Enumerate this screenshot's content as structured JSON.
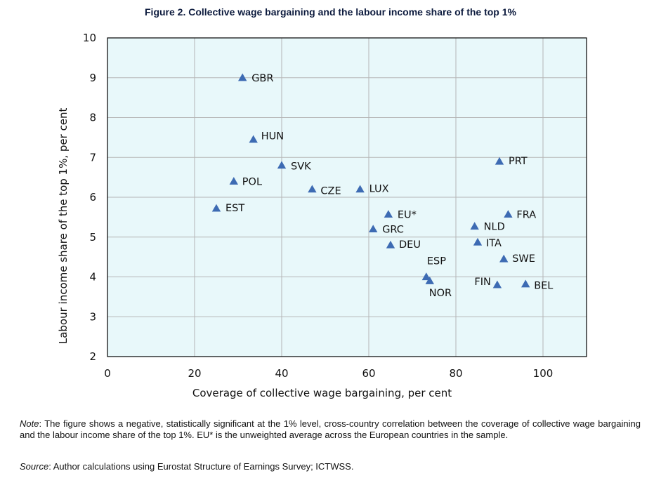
{
  "figure": {
    "title": "Figure 2. Collective wage bargaining and the labour income share of the top 1%",
    "note_label": "Note",
    "note_text": ": The figure shows a negative, statistically significant at the 1% level, cross-country correlation between the coverage of collective wage bargaining and the labour income share of the top 1%. EU* is the unweighted average across the European countries in the sample.",
    "source_label": "Source",
    "source_text": ": Author calculations using Eurostat Structure of Earnings Survey; ICTWSS."
  },
  "chart_data": {
    "type": "scatter",
    "title": "Figure 2. Collective wage bargaining and the labour income share of the top 1%",
    "xlabel": "Coverage of collective wage bargaining, per cent",
    "ylabel": "Labour income share of the top 1%, per cent",
    "xlim": [
      0,
      110
    ],
    "ylim": [
      2,
      10
    ],
    "xticks": [
      0,
      20,
      40,
      60,
      80,
      100
    ],
    "yticks": [
      2,
      3,
      4,
      5,
      6,
      7,
      8,
      9,
      10
    ],
    "grid": true,
    "marker": "triangle",
    "colors": {
      "marker": "#3d6bb3",
      "plot_bg": "#e8f8fa",
      "grid": "#b5b5b5",
      "frame": "#000000"
    },
    "points": [
      {
        "label": "GBR",
        "x": 31,
        "y": 9.0
      },
      {
        "label": "HUN",
        "x": 33.5,
        "y": 7.45
      },
      {
        "label": "SVK",
        "x": 40,
        "y": 6.8
      },
      {
        "label": "POL",
        "x": 29,
        "y": 6.4
      },
      {
        "label": "CZE",
        "x": 47,
        "y": 6.2
      },
      {
        "label": "LUX",
        "x": 58,
        "y": 6.2
      },
      {
        "label": "EST",
        "x": 25,
        "y": 5.72
      },
      {
        "label": "EU*",
        "x": 64.5,
        "y": 5.57
      },
      {
        "label": "GRC",
        "x": 61,
        "y": 5.2
      },
      {
        "label": "DEU",
        "x": 65,
        "y": 4.8
      },
      {
        "label": "ESP",
        "x": 73.2,
        "y": 4.0
      },
      {
        "label": "NOR",
        "x": 74,
        "y": 3.9
      },
      {
        "label": "PRT",
        "x": 90,
        "y": 6.9
      },
      {
        "label": "FRA",
        "x": 92,
        "y": 5.57
      },
      {
        "label": "NLD",
        "x": 84.3,
        "y": 5.27
      },
      {
        "label": "ITA",
        "x": 85,
        "y": 4.87
      },
      {
        "label": "SWE",
        "x": 91,
        "y": 4.45
      },
      {
        "label": "FIN",
        "x": 89.5,
        "y": 3.8
      },
      {
        "label": "BEL",
        "x": 96,
        "y": 3.82
      }
    ]
  }
}
